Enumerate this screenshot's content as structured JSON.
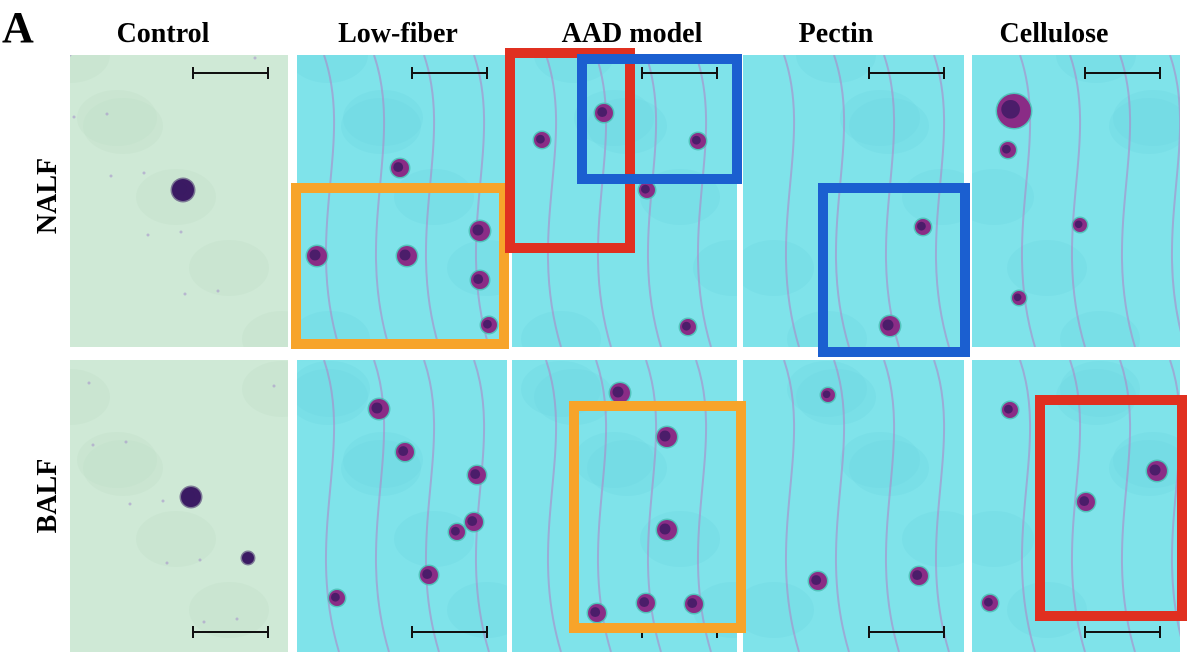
{
  "panel_label": "A",
  "column_labels": [
    "Control",
    "Low-fiber",
    "AAD model",
    "Pectin",
    "Cellulose"
  ],
  "row_labels": [
    "NALF",
    "BALF"
  ],
  "colors": {
    "control_background": "#cfe9d6",
    "treated_background": "#7fe3ea",
    "cell_stain": "#8a2c86",
    "nucleus_stain": "#3b1a63",
    "box_orange": "#f7a42a",
    "box_red": "#e03020",
    "box_blue": "#1b5fd0"
  }
}
